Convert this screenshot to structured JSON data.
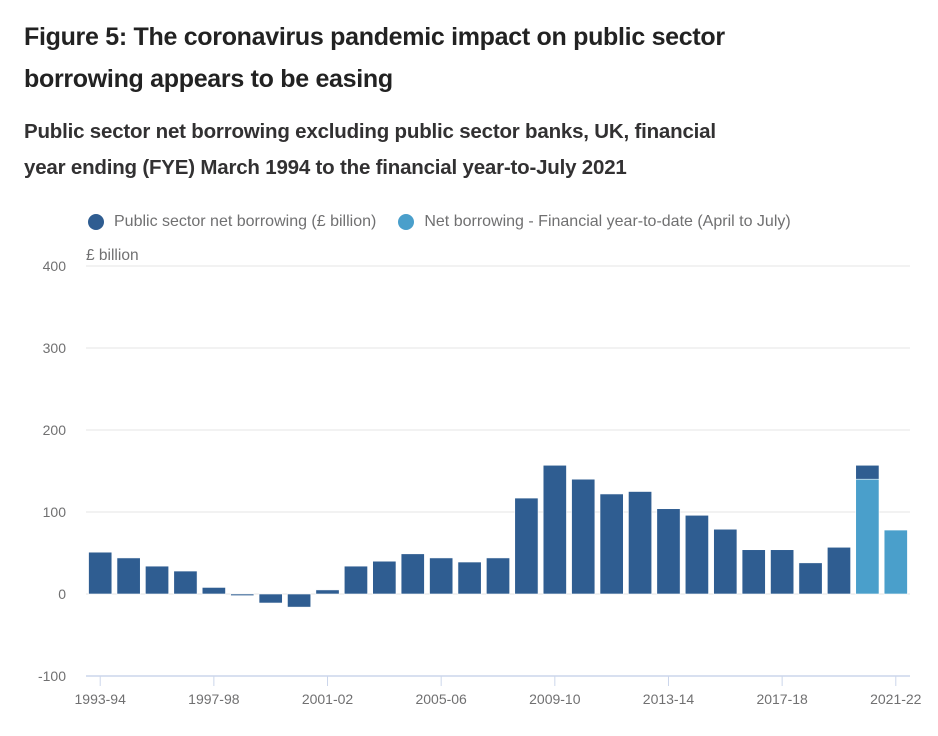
{
  "header": {
    "title_line1": "Figure 5: The coronavirus pandemic impact on public sector",
    "title_line2": "borrowing appears to be easing",
    "subtitle_line1": "Public sector net borrowing excluding public sector banks, UK, financial",
    "subtitle_line2": "year ending (FYE) March 1994 to the financial year-to-July 2021"
  },
  "chart_data": {
    "type": "bar",
    "stacked": true,
    "title": "Figure 5: The coronavirus pandemic impact on public sector borrowing appears to be easing",
    "subtitle": "Public sector net borrowing excluding public sector banks, UK, financial year ending (FYE) March 1994 to the financial year-to-July 2021",
    "ylabel": "£ billion",
    "xlabel": "",
    "ylim": [
      -100,
      400
    ],
    "yticks": [
      400,
      300,
      200,
      100,
      0,
      -100
    ],
    "grid": true,
    "legend_position": "top-left",
    "categories": [
      "1993-94",
      "1994-95",
      "1995-96",
      "1996-97",
      "1997-98",
      "1998-99",
      "1999-00",
      "2000-01",
      "2001-02",
      "2002-03",
      "2003-04",
      "2004-05",
      "2005-06",
      "2006-07",
      "2007-08",
      "2008-09",
      "2009-10",
      "2010-11",
      "2011-12",
      "2012-13",
      "2013-14",
      "2014-15",
      "2015-16",
      "2016-17",
      "2017-18",
      "2018-19",
      "2019-20",
      "2020-21",
      "2021-22"
    ],
    "xtick_labels": [
      "1993-94",
      "1997-98",
      "2001-02",
      "2005-06",
      "2009-10",
      "2013-14",
      "2017-18",
      "2021-22"
    ],
    "series": [
      {
        "name": "Net borrowing - Financial year-to-date (April to July)",
        "color": "#4a9fcb",
        "values": [
          null,
          null,
          null,
          null,
          null,
          null,
          null,
          null,
          null,
          null,
          null,
          null,
          null,
          null,
          null,
          null,
          null,
          null,
          null,
          null,
          null,
          null,
          null,
          null,
          null,
          null,
          null,
          140,
          78
        ]
      },
      {
        "name": "Public sector net borrowing (£ billion)",
        "color": "#2f5d91",
        "values": [
          51,
          44,
          34,
          28,
          8,
          -2,
          -11,
          -16,
          5,
          34,
          40,
          49,
          44,
          39,
          44,
          117,
          157,
          140,
          122,
          125,
          104,
          96,
          79,
          54,
          54,
          38,
          57,
          157,
          null
        ]
      }
    ],
    "legend": [
      {
        "label": "Public sector net borrowing (£ billion)",
        "color": "#2f5d91"
      },
      {
        "label": "Net borrowing - Financial year-to-date (April to July)",
        "color": "#4a9fcb"
      }
    ]
  }
}
